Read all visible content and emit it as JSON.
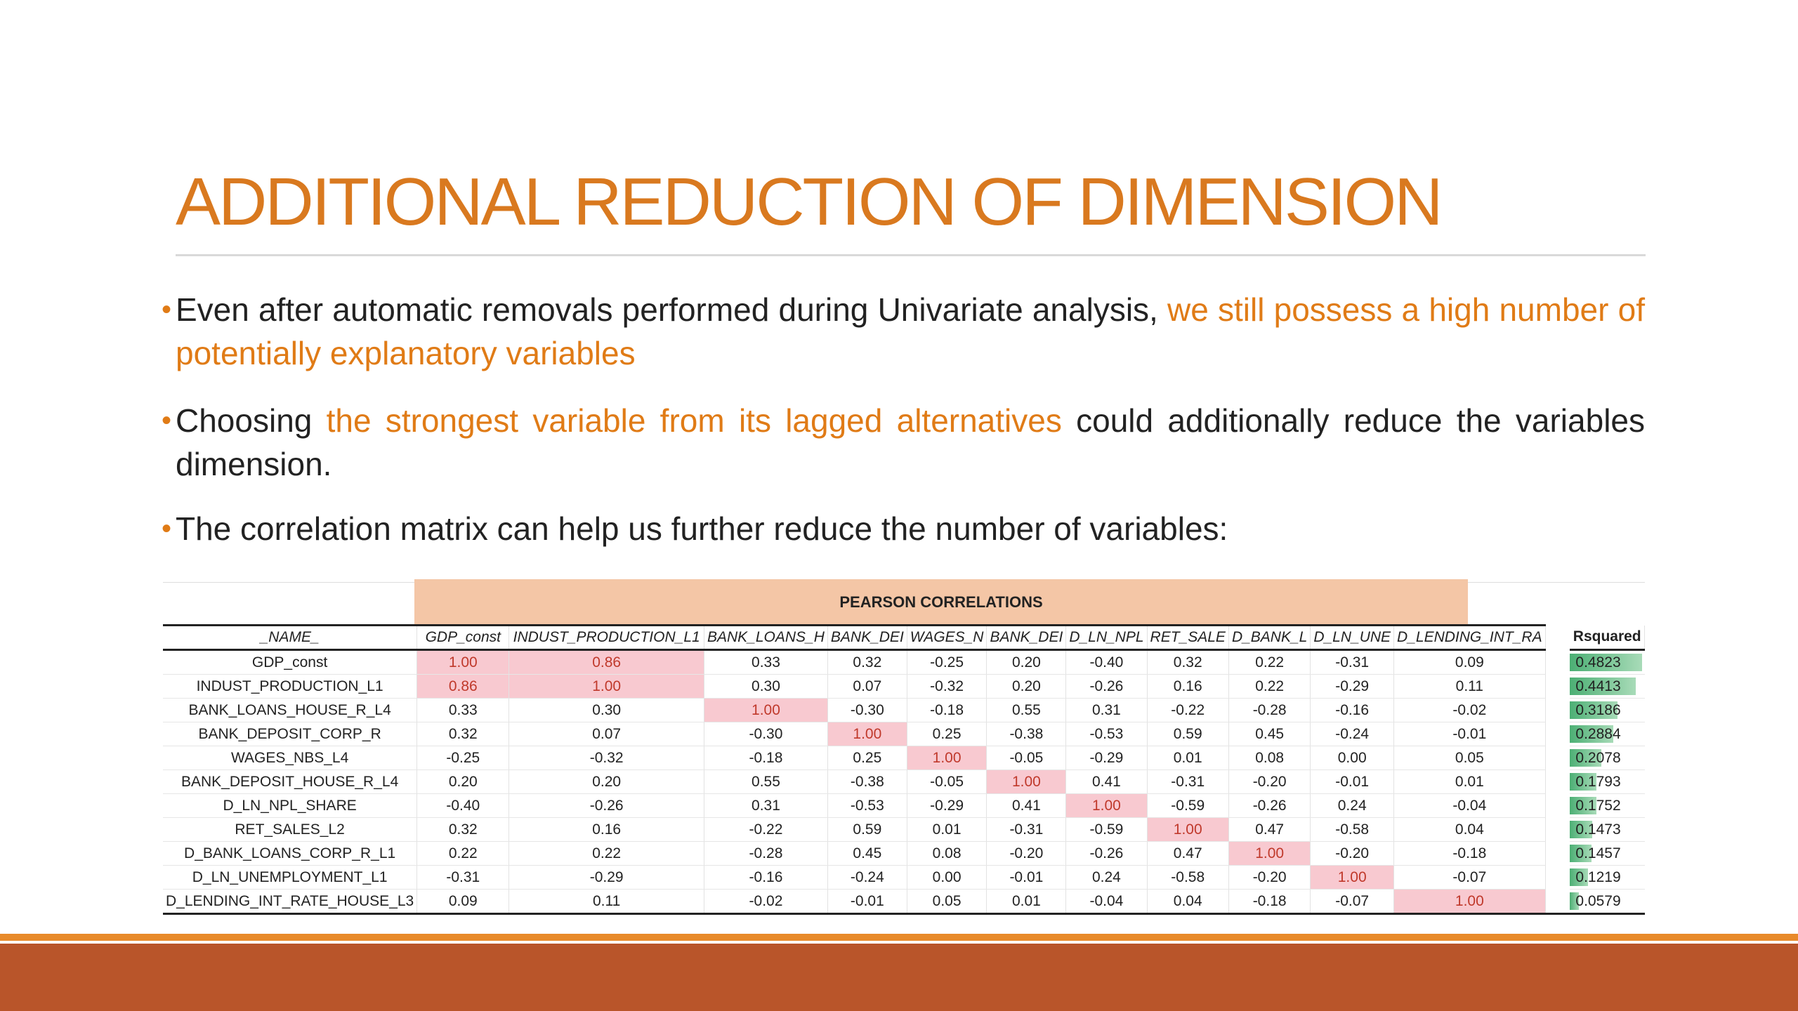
{
  "slide": {
    "title": "ADDITIONAL REDUCTION OF DIMENSION",
    "bullets": [
      {
        "pre": " Even after automatic removals performed during Univariate analysis, ",
        "highlight": "we still possess a high number of potentially explanatory variables",
        "post": ""
      },
      {
        "pre": "Choosing ",
        "highlight": "the strongest variable from its lagged alternatives",
        "post": " could additionally reduce the variables dimension."
      },
      {
        "pre": "The correlation matrix can help us further reduce the number of variables:",
        "highlight": "",
        "post": ""
      }
    ],
    "colors": {
      "accent": "#e07b16",
      "pink_cell": "#f8c9d0",
      "header_band": "#f4c6a6",
      "footer": "#b9552a",
      "bar": "#4caf74"
    }
  },
  "table": {
    "band_label": "PEARSON CORRELATIONS",
    "name_header": "_NAME_",
    "rsq_header": "Rsquared",
    "columns": [
      "GDP_const",
      "INDUST_PRODUCTION_L1",
      "BANK_LOANS_H",
      "BANK_DEI",
      "WAGES_N",
      "BANK_DEI",
      "D_LN_NPL",
      "RET_SALE",
      "D_BANK_L",
      "D_LN_UNE",
      "D_LENDING_INT_RA"
    ],
    "rows": [
      {
        "name": "GDP_const",
        "values": [
          "1.00",
          "0.86",
          "0.33",
          "0.32",
          "-0.25",
          "0.20",
          "-0.40",
          "0.32",
          "0.22",
          "-0.31",
          "0.09"
        ],
        "rsq": "0.4823",
        "rsq_num": 0.4823
      },
      {
        "name": "INDUST_PRODUCTION_L1",
        "values": [
          "0.86",
          "1.00",
          "0.30",
          "0.07",
          "-0.32",
          "0.20",
          "-0.26",
          "0.16",
          "0.22",
          "-0.29",
          "0.11"
        ],
        "rsq": "0.4413",
        "rsq_num": 0.4413
      },
      {
        "name": "BANK_LOANS_HOUSE_R_L4",
        "values": [
          "0.33",
          "0.30",
          "1.00",
          "-0.30",
          "-0.18",
          "0.55",
          "0.31",
          "-0.22",
          "-0.28",
          "-0.16",
          "-0.02"
        ],
        "rsq": "0.3186",
        "rsq_num": 0.3186
      },
      {
        "name": "BANK_DEPOSIT_CORP_R",
        "values": [
          "0.32",
          "0.07",
          "-0.30",
          "1.00",
          "0.25",
          "-0.38",
          "-0.53",
          "0.59",
          "0.45",
          "-0.24",
          "-0.01"
        ],
        "rsq": "0.2884",
        "rsq_num": 0.2884
      },
      {
        "name": "WAGES_NBS_L4",
        "values": [
          "-0.25",
          "-0.32",
          "-0.18",
          "0.25",
          "1.00",
          "-0.05",
          "-0.29",
          "0.01",
          "0.08",
          "0.00",
          "0.05"
        ],
        "rsq": "0.2078",
        "rsq_num": 0.2078
      },
      {
        "name": "BANK_DEPOSIT_HOUSE_R_L4",
        "values": [
          "0.20",
          "0.20",
          "0.55",
          "-0.38",
          "-0.05",
          "1.00",
          "0.41",
          "-0.31",
          "-0.20",
          "-0.01",
          "0.01"
        ],
        "rsq": "0.1793",
        "rsq_num": 0.1793
      },
      {
        "name": "D_LN_NPL_SHARE",
        "values": [
          "-0.40",
          "-0.26",
          "0.31",
          "-0.53",
          "-0.29",
          "0.41",
          "1.00",
          "-0.59",
          "-0.26",
          "0.24",
          "-0.04"
        ],
        "rsq": "0.1752",
        "rsq_num": 0.1752
      },
      {
        "name": "RET_SALES_L2",
        "values": [
          "0.32",
          "0.16",
          "-0.22",
          "0.59",
          "0.01",
          "-0.31",
          "-0.59",
          "1.00",
          "0.47",
          "-0.58",
          "0.04"
        ],
        "rsq": "0.1473",
        "rsq_num": 0.1473
      },
      {
        "name": "D_BANK_LOANS_CORP_R_L1",
        "values": [
          "0.22",
          "0.22",
          "-0.28",
          "0.45",
          "0.08",
          "-0.20",
          "-0.26",
          "0.47",
          "1.00",
          "-0.20",
          "-0.18"
        ],
        "rsq": "0.1457",
        "rsq_num": 0.1457
      },
      {
        "name": "D_LN_UNEMPLOYMENT_L1",
        "values": [
          "-0.31",
          "-0.29",
          "-0.16",
          "-0.24",
          "0.00",
          "-0.01",
          "0.24",
          "-0.58",
          "-0.20",
          "1.00",
          "-0.07"
        ],
        "rsq": "0.1219",
        "rsq_num": 0.1219
      },
      {
        "name": "D_LENDING_INT_RATE_HOUSE_L3",
        "values": [
          "0.09",
          "0.11",
          "-0.02",
          "-0.01",
          "0.05",
          "0.01",
          "-0.04",
          "0.04",
          "-0.18",
          "-0.07",
          "1.00"
        ],
        "rsq": "0.0579",
        "rsq_num": 0.0579
      }
    ]
  }
}
